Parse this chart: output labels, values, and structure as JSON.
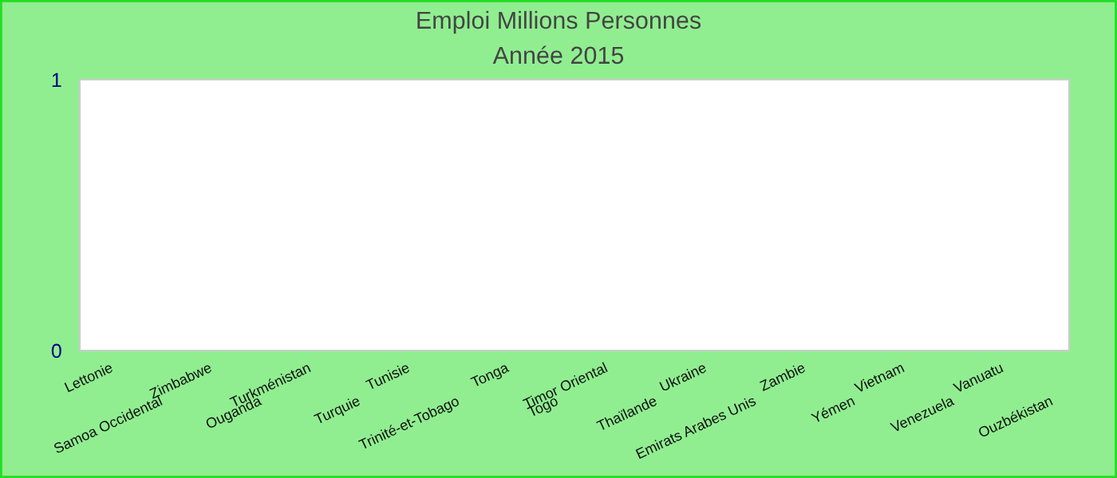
{
  "chart_data": {
    "type": "bar",
    "title": "Emploi Millions Personnes",
    "subtitle": "Année 2015",
    "categories": [
      "Lettonie",
      "Samoa Occidental",
      "Zimbabwe",
      "Ouganda",
      "Turkménistan",
      "Turquie",
      "Tunisie",
      "Trinité-et-Tobago",
      "Tonga",
      "Togo",
      "Timor Oriental",
      "Thaïlande",
      "Ukraine",
      "Emirats Arabes Unis",
      "Zambie",
      "Yémen",
      "Vietnam",
      "Venezuela",
      "Vanuatu",
      "Ouzbékistan"
    ],
    "values": [
      null,
      null,
      null,
      null,
      null,
      null,
      null,
      null,
      null,
      null,
      null,
      null,
      null,
      null,
      null,
      null,
      null,
      null,
      null,
      null
    ],
    "ylim": [
      0,
      1
    ],
    "yticks": [
      0,
      1
    ]
  }
}
